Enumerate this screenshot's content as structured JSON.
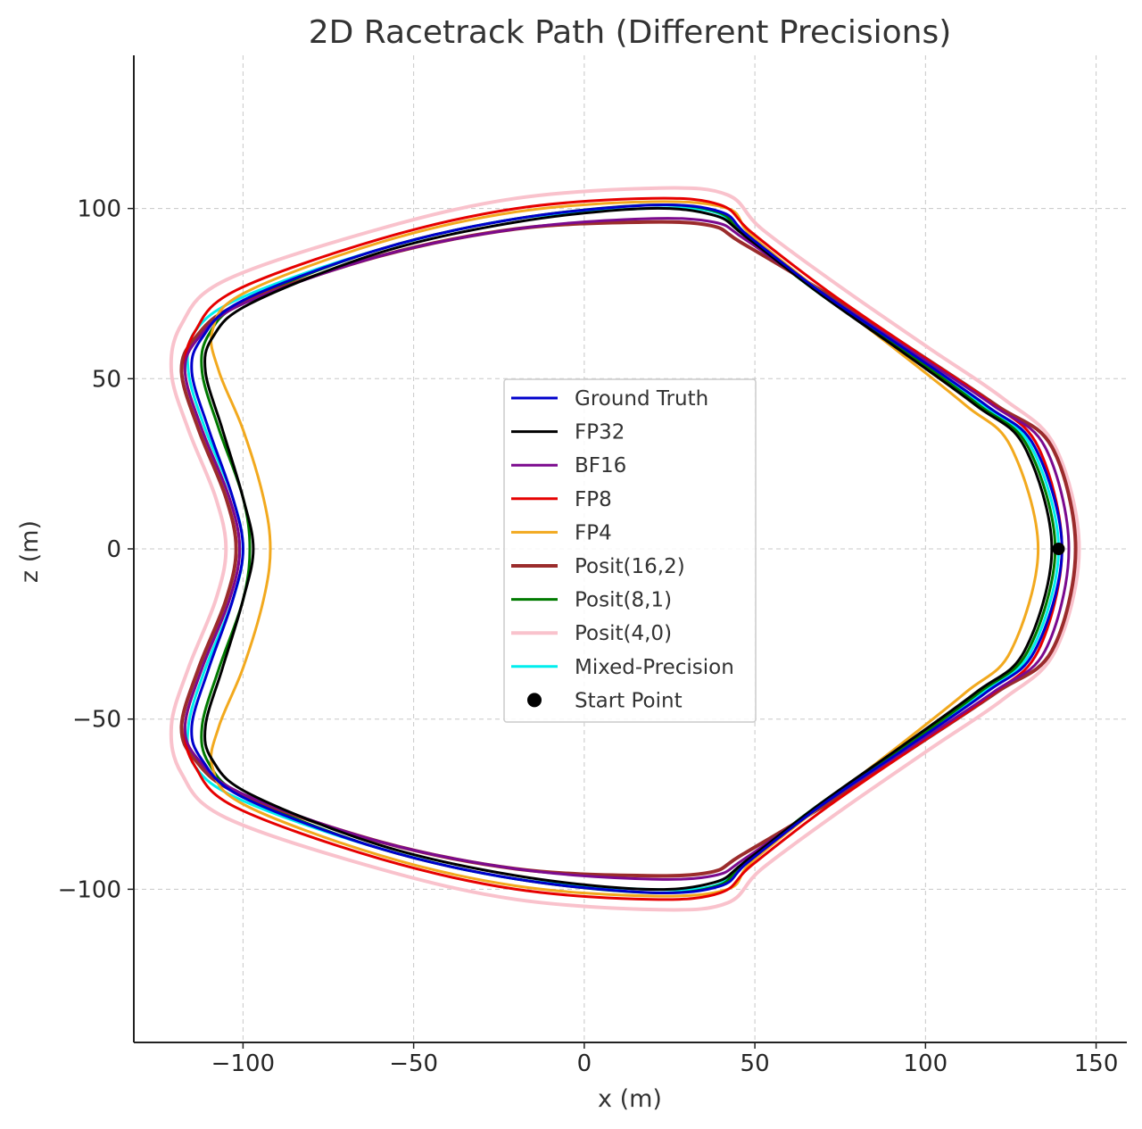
{
  "chart_data": {
    "type": "line",
    "title": "2D Racetrack Path (Different Precisions)",
    "xlabel": "x (m)",
    "ylabel": "z (m)",
    "xlim": [
      -132,
      159
    ],
    "ylim": [
      -145,
      145
    ],
    "xticks": [
      -100,
      -50,
      0,
      50,
      100,
      150
    ],
    "yticks": [
      -100,
      -50,
      0,
      50,
      100
    ],
    "xtick_labels": [
      "−100",
      "−50",
      "0",
      "50",
      "100",
      "150"
    ],
    "ytick_labels": [
      "−100",
      "−50",
      "0",
      "50",
      "100"
    ],
    "grid": true,
    "legend_position": "center",
    "series": [
      {
        "name": "Ground Truth",
        "color": "#0000cc",
        "linewidth": 3,
        "opacity": 1,
        "points": [
          [
            140,
            0
          ],
          [
            132,
            30
          ],
          [
            118,
            42
          ],
          [
            95,
            58
          ],
          [
            70,
            75
          ],
          [
            48,
            92
          ],
          [
            40,
            99
          ],
          [
            20,
            101
          ],
          [
            -20,
            97
          ],
          [
            -60,
            88
          ],
          [
            -100,
            73
          ],
          [
            -112,
            62
          ],
          [
            -115,
            52
          ],
          [
            -110,
            35
          ],
          [
            -103,
            15
          ],
          [
            -100,
            0
          ],
          [
            -103,
            -15
          ],
          [
            -110,
            -35
          ],
          [
            -115,
            -52
          ],
          [
            -112,
            -62
          ],
          [
            -100,
            -73
          ],
          [
            -60,
            -88
          ],
          [
            -20,
            -97
          ],
          [
            20,
            -101
          ],
          [
            40,
            -99
          ],
          [
            48,
            -92
          ],
          [
            70,
            -75
          ],
          [
            95,
            -58
          ],
          [
            118,
            -42
          ],
          [
            132,
            -30
          ]
        ]
      },
      {
        "name": "FP32",
        "color": "#000000",
        "linewidth": 3,
        "opacity": 1,
        "points": [
          [
            137,
            0
          ],
          [
            129,
            30
          ],
          [
            115,
            42
          ],
          [
            93,
            58
          ],
          [
            69,
            75
          ],
          [
            47,
            92
          ],
          [
            38,
            98
          ],
          [
            18,
            100
          ],
          [
            -20,
            96
          ],
          [
            -60,
            87
          ],
          [
            -98,
            72
          ],
          [
            -109,
            62
          ],
          [
            -111,
            52
          ],
          [
            -106,
            35
          ],
          [
            -100,
            15
          ],
          [
            -97,
            0
          ],
          [
            -100,
            -15
          ],
          [
            -106,
            -35
          ],
          [
            -111,
            -52
          ],
          [
            -109,
            -62
          ],
          [
            -98,
            -72
          ],
          [
            -60,
            -87
          ],
          [
            -20,
            -96
          ],
          [
            18,
            -100
          ],
          [
            38,
            -98
          ],
          [
            47,
            -92
          ],
          [
            69,
            -75
          ],
          [
            93,
            -58
          ],
          [
            115,
            -42
          ],
          [
            129,
            -30
          ]
        ]
      },
      {
        "name": "BF16",
        "color": "#7b0a8e",
        "linewidth": 3,
        "opacity": 1,
        "points": [
          [
            142,
            0
          ],
          [
            135,
            30
          ],
          [
            120,
            42
          ],
          [
            96,
            58
          ],
          [
            70,
            75
          ],
          [
            47,
            91
          ],
          [
            38,
            96
          ],
          [
            18,
            97
          ],
          [
            -20,
            94
          ],
          [
            -60,
            86
          ],
          [
            -100,
            72
          ],
          [
            -113,
            62
          ],
          [
            -117,
            52
          ],
          [
            -112,
            35
          ],
          [
            -104,
            15
          ],
          [
            -101,
            0
          ],
          [
            -104,
            -15
          ],
          [
            -112,
            -35
          ],
          [
            -117,
            -52
          ],
          [
            -113,
            -62
          ],
          [
            -100,
            -72
          ],
          [
            -60,
            -86
          ],
          [
            -20,
            -94
          ],
          [
            18,
            -97
          ],
          [
            38,
            -96
          ],
          [
            47,
            -91
          ],
          [
            70,
            -75
          ],
          [
            96,
            -58
          ],
          [
            120,
            -42
          ],
          [
            135,
            -30
          ]
        ]
      },
      {
        "name": "FP8",
        "color": "#e60000",
        "linewidth": 3,
        "opacity": 1,
        "points": [
          [
            140,
            0
          ],
          [
            133,
            30
          ],
          [
            119,
            43
          ],
          [
            97,
            58
          ],
          [
            71,
            76
          ],
          [
            49,
            93
          ],
          [
            40,
            101
          ],
          [
            20,
            103
          ],
          [
            -20,
            100
          ],
          [
            -60,
            91
          ],
          [
            -102,
            76
          ],
          [
            -114,
            64
          ],
          [
            -117,
            52
          ],
          [
            -112,
            35
          ],
          [
            -104,
            15
          ],
          [
            -101,
            0
          ],
          [
            -104,
            -15
          ],
          [
            -112,
            -35
          ],
          [
            -117,
            -52
          ],
          [
            -114,
            -64
          ],
          [
            -102,
            -76
          ],
          [
            -60,
            -91
          ],
          [
            -20,
            -100
          ],
          [
            20,
            -103
          ],
          [
            40,
            -101
          ],
          [
            49,
            -93
          ],
          [
            71,
            -76
          ],
          [
            97,
            -58
          ],
          [
            119,
            -43
          ],
          [
            133,
            -30
          ]
        ]
      },
      {
        "name": "FP4",
        "color": "#f2a91e",
        "linewidth": 3,
        "opacity": 1,
        "points": [
          [
            133,
            0
          ],
          [
            125,
            30
          ],
          [
            112,
            42
          ],
          [
            92,
            58
          ],
          [
            70,
            75
          ],
          [
            49,
            92
          ],
          [
            42,
            100
          ],
          [
            20,
            102
          ],
          [
            -20,
            99
          ],
          [
            -60,
            90
          ],
          [
            -100,
            75
          ],
          [
            -109,
            64
          ],
          [
            -107,
            52
          ],
          [
            -100,
            35
          ],
          [
            -94,
            15
          ],
          [
            -92,
            0
          ],
          [
            -94,
            -15
          ],
          [
            -100,
            -35
          ],
          [
            -107,
            -52
          ],
          [
            -109,
            -64
          ],
          [
            -100,
            -75
          ],
          [
            -60,
            -90
          ],
          [
            -20,
            -99
          ],
          [
            20,
            -102
          ],
          [
            42,
            -100
          ],
          [
            49,
            -92
          ],
          [
            70,
            -75
          ],
          [
            92,
            -58
          ],
          [
            112,
            -42
          ],
          [
            125,
            -30
          ]
        ]
      },
      {
        "name": "Posit(16,2)",
        "color": "#9b2c2c",
        "linewidth": 4,
        "opacity": 1,
        "points": [
          [
            144,
            0
          ],
          [
            137,
            30
          ],
          [
            121,
            42
          ],
          [
            97,
            58
          ],
          [
            71,
            75
          ],
          [
            46,
            90
          ],
          [
            37,
            95
          ],
          [
            17,
            96
          ],
          [
            -20,
            94
          ],
          [
            -60,
            86
          ],
          [
            -101,
            72
          ],
          [
            -114,
            62
          ],
          [
            -118,
            52
          ],
          [
            -113,
            35
          ],
          [
            -105,
            15
          ],
          [
            -102,
            0
          ],
          [
            -105,
            -15
          ],
          [
            -113,
            -35
          ],
          [
            -118,
            -52
          ],
          [
            -114,
            -62
          ],
          [
            -101,
            -72
          ],
          [
            -60,
            -86
          ],
          [
            -20,
            -94
          ],
          [
            17,
            -96
          ],
          [
            37,
            -95
          ],
          [
            46,
            -90
          ],
          [
            71,
            -75
          ],
          [
            97,
            -58
          ],
          [
            121,
            -42
          ],
          [
            137,
            -30
          ]
        ]
      },
      {
        "name": "Posit(8,1)",
        "color": "#007a00",
        "linewidth": 3,
        "opacity": 1,
        "points": [
          [
            138,
            0
          ],
          [
            130,
            30
          ],
          [
            116,
            42
          ],
          [
            94,
            58
          ],
          [
            69,
            75
          ],
          [
            47,
            92
          ],
          [
            39,
            99
          ],
          [
            19,
            101
          ],
          [
            -20,
            97
          ],
          [
            -60,
            88
          ],
          [
            -99,
            73
          ],
          [
            -110,
            63
          ],
          [
            -112,
            52
          ],
          [
            -107,
            35
          ],
          [
            -100,
            15
          ],
          [
            -98,
            0
          ],
          [
            -100,
            -15
          ],
          [
            -107,
            -35
          ],
          [
            -112,
            -52
          ],
          [
            -110,
            -63
          ],
          [
            -99,
            -73
          ],
          [
            -60,
            -88
          ],
          [
            -20,
            -97
          ],
          [
            19,
            -101
          ],
          [
            39,
            -99
          ],
          [
            47,
            -92
          ],
          [
            69,
            -75
          ],
          [
            94,
            -58
          ],
          [
            116,
            -42
          ],
          [
            130,
            -30
          ]
        ]
      },
      {
        "name": "Posit(4,0)",
        "color": "#f9c2cc",
        "linewidth": 4,
        "opacity": 1,
        "points": [
          [
            145,
            0
          ],
          [
            138,
            30
          ],
          [
            123,
            44
          ],
          [
            101,
            59
          ],
          [
            75,
            77
          ],
          [
            52,
            94
          ],
          [
            42,
            104
          ],
          [
            22,
            106
          ],
          [
            -20,
            103
          ],
          [
            -60,
            94
          ],
          [
            -105,
            79
          ],
          [
            -118,
            66
          ],
          [
            -121,
            52
          ],
          [
            -116,
            35
          ],
          [
            -108,
            15
          ],
          [
            -105,
            0
          ],
          [
            -108,
            -15
          ],
          [
            -116,
            -35
          ],
          [
            -121,
            -52
          ],
          [
            -118,
            -66
          ],
          [
            -105,
            -79
          ],
          [
            -60,
            -94
          ],
          [
            -20,
            -103
          ],
          [
            22,
            -106
          ],
          [
            42,
            -104
          ],
          [
            52,
            -94
          ],
          [
            75,
            -77
          ],
          [
            101,
            -59
          ],
          [
            123,
            -44
          ],
          [
            138,
            -30
          ]
        ]
      },
      {
        "name": "Mixed-Precision",
        "color": "#00eeee",
        "linewidth": 3,
        "opacity": 1,
        "points": [
          [
            139,
            0
          ],
          [
            131,
            30
          ],
          [
            117,
            42
          ],
          [
            94,
            58
          ],
          [
            69,
            75
          ],
          [
            47,
            92
          ],
          [
            38,
            99
          ],
          [
            18,
            100
          ],
          [
            -20,
            97
          ],
          [
            -60,
            88
          ],
          [
            -100,
            74
          ],
          [
            -114,
            64
          ],
          [
            -116,
            52
          ],
          [
            -111,
            35
          ],
          [
            -103,
            15
          ],
          [
            -100,
            0
          ],
          [
            -103,
            -15
          ],
          [
            -111,
            -35
          ],
          [
            -116,
            -52
          ],
          [
            -114,
            -64
          ],
          [
            -100,
            -74
          ],
          [
            -60,
            -88
          ],
          [
            -20,
            -97
          ],
          [
            18,
            -100
          ],
          [
            38,
            -99
          ],
          [
            47,
            -92
          ],
          [
            69,
            -75
          ],
          [
            94,
            -58
          ],
          [
            117,
            -42
          ],
          [
            131,
            -30
          ]
        ]
      }
    ],
    "markers": [
      {
        "name": "Start Point",
        "color": "#000000",
        "x": 139,
        "y": 0
      }
    ]
  }
}
